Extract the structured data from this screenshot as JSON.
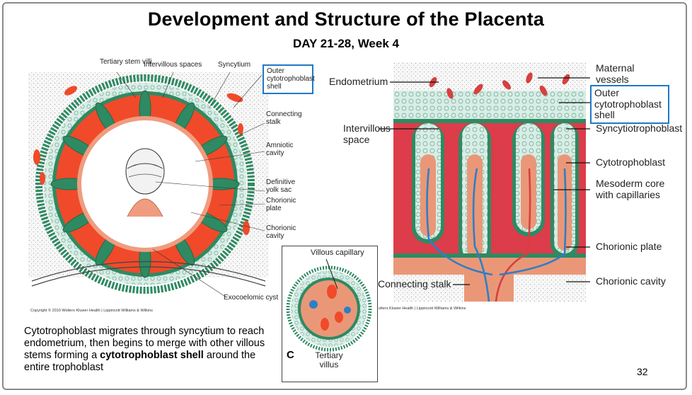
{
  "slide": {
    "title": "Development and Structure of the Placenta",
    "subtitle": "DAY 21-28, Week 4",
    "page_number": "32"
  },
  "left_figure": {
    "labels": {
      "tertiary_stem_villi": "Tertiary stem villi",
      "intervillous_spaces": "Intervillous spaces",
      "syncytium": "Syncytium",
      "outer_cytotrophoblast_shell": "Outer cytotrophoblast shell",
      "connecting_stalk": "Connecting stalk",
      "amniotic_cavity": "Amniotic cavity",
      "definitive_yolk_sac": "Definitive yolk sac",
      "chorionic_plate": "Chorionic plate",
      "chorionic_cavity": "Chorionic cavity",
      "exocoelomic_cyst": "Exocoelomic cyst"
    },
    "copyright": "Copyright © 2010 Wolters Kluwer Health | Lippincott Williams & Wilkins"
  },
  "right_figure": {
    "labels": {
      "endometrium": "Endometrium",
      "maternal_vessels": "Maternal vessels",
      "outer_cytotrophoblast_shell": "Outer cytotrophoblast shell",
      "intervillous_space": "Intervillous space",
      "syncytiotrophoblast": "Syncytiotrophoblast",
      "cytotrophoblast": "Cytotrophoblast",
      "mesoderm_core": "Mesoderm core with capillaries",
      "chorionic_plate": "Chorionic plate",
      "connecting_stalk": "Connecting stalk",
      "chorionic_cavity": "Chorionic cavity"
    },
    "copyright": "olters Kluwer Health | Lippincott Williams & Wilkins"
  },
  "panel_c": {
    "letter": "C",
    "villous_capillary": "Villous capillary",
    "tertiary_villus": "Tertiary villus"
  },
  "caption": {
    "text_before": "Cytotrophoblast migrates through syncytium to reach endometrium, then begins to merge with other villous stems forming a ",
    "bold": "cytotrophoblast shell",
    "text_after": " around the entire trophoblast"
  },
  "colors": {
    "outline_highlight": "#1f78c8",
    "blood_red": "#f04a2a",
    "intervillous_red": "#dd3c4a",
    "mesoderm_salmon": "#ea9778",
    "trophoblast_green": "#2e8a62",
    "trophoblast_pale": "#d8ede6",
    "vessel_blue": "#2d7fc4"
  }
}
